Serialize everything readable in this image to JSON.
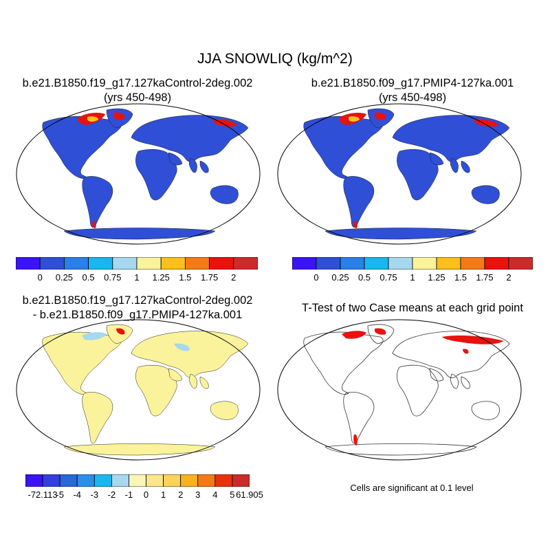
{
  "title": "JJA SNOWLIQ (kg/m^2)",
  "panels": [
    {
      "title_line1": "b.e21.B1850.f19_g17.127kaControl-2deg.002",
      "title_line2": "(yrs 450-498)"
    },
    {
      "title_line1": "b.e21.B1850.f09_g17.PMIP4-127ka.001",
      "title_line2": "(yrs 450-498)"
    },
    {
      "title_line1": "b.e21.B1850.f19_g17.127kaControl-2deg.002",
      "title_line2": "- b.e21.B1850.f09_g17.PMIP4-127ka.001"
    },
    {
      "title_line1": "T-Test of two Case means at each grid point",
      "title_line2": ""
    }
  ],
  "colorbar_means": {
    "colors": [
      "#3b14f5",
      "#2f4fd6",
      "#2a7fe8",
      "#1ab6f0",
      "#a6d8ef",
      "#fbf39b",
      "#fbbf1e",
      "#f57a17",
      "#e8120e",
      "#cc2b2b"
    ],
    "labels": [
      "0",
      "0.25",
      "0.5",
      "0.75",
      "1",
      "1.25",
      "1.5",
      "1.75",
      "2"
    ]
  },
  "colorbar_diff": {
    "colors": [
      "#3b14f5",
      "#3340e0",
      "#2a67d8",
      "#2a8fe8",
      "#1ab6f0",
      "#a6d8ef",
      "#fbf6b7",
      "#fbe68a",
      "#fbd25a",
      "#fbb01e",
      "#f57a17",
      "#e8320e",
      "#cc2b2b"
    ],
    "labels": [
      "-72.113",
      "-5",
      "-4",
      "-3",
      "-2",
      "-1",
      "0",
      "1",
      "2",
      "3",
      "4",
      "5",
      "61.905"
    ]
  },
  "significance_note": "Cells are significant at 0.1 level",
  "map_colors": {
    "ocean": "#ffffff",
    "land_mean": "#2f4fd6",
    "land_diff": "#fbf39b",
    "diff_light_blue": "#a6d8ef",
    "snow_high": "#e8120e",
    "snow_mid": "#fbbf1e",
    "significant": "#e8120e"
  }
}
